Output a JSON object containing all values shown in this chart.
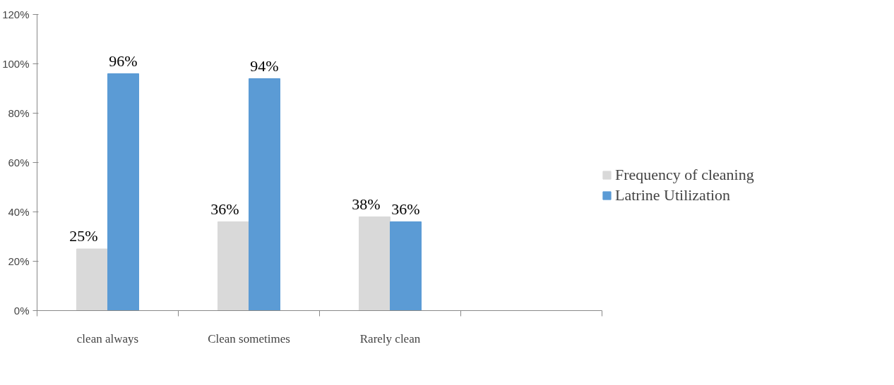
{
  "chart_data": {
    "type": "bar",
    "categories": [
      "clean always",
      "Clean sometimes",
      "Rarely clean",
      null
    ],
    "series": [
      {
        "name": "Frequency of cleaning",
        "color": "#d9d9d9",
        "values": [
          25,
          36,
          38,
          null
        ],
        "value_labels": [
          "25%",
          "36%",
          "38%",
          null
        ]
      },
      {
        "name": "Latrine Utilization",
        "color": "#5b9bd5",
        "values": [
          96,
          94,
          36,
          null
        ],
        "value_labels": [
          "96%",
          "94%",
          "36%",
          null
        ]
      }
    ],
    "ylim": [
      0,
      120
    ],
    "yticks": [
      {
        "value": 0,
        "label": "0%"
      },
      {
        "value": 20,
        "label": "20%"
      },
      {
        "value": 40,
        "label": "40%"
      },
      {
        "value": 60,
        "label": "60%"
      },
      {
        "value": 80,
        "label": "80%"
      },
      {
        "value": 100,
        "label": "100%"
      },
      {
        "value": 120,
        "label": "120%"
      }
    ],
    "data_labels": true,
    "legend": "right",
    "grid": false
  }
}
